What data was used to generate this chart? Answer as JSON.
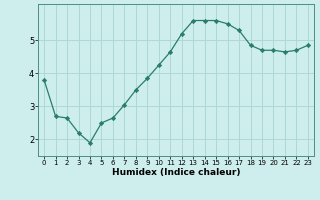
{
  "x": [
    0,
    1,
    2,
    3,
    4,
    5,
    6,
    7,
    8,
    9,
    10,
    11,
    12,
    13,
    14,
    15,
    16,
    17,
    18,
    19,
    20,
    21,
    22,
    23
  ],
  "y": [
    3.8,
    2.7,
    2.65,
    2.2,
    1.9,
    2.5,
    2.65,
    3.05,
    3.5,
    3.85,
    4.25,
    4.65,
    5.2,
    5.6,
    5.6,
    5.6,
    5.5,
    5.3,
    4.85,
    4.7,
    4.7,
    4.65,
    4.7,
    4.85
  ],
  "title": "",
  "xlabel": "Humidex (Indice chaleur)",
  "ylabel": "",
  "bg_color": "#cdeeed",
  "line_color": "#2a7d6e",
  "marker_color": "#2a7d6e",
  "grid_color": "#aed8d4",
  "axis_bg": "#cdeeed",
  "ylim_min": 1.5,
  "ylim_max": 6.1,
  "yticks": [
    2,
    3,
    4,
    5
  ],
  "xtick_labels": [
    "0",
    "1",
    "2",
    "3",
    "4",
    "5",
    "6",
    "7",
    "8",
    "9",
    "10",
    "11",
    "12",
    "13",
    "14",
    "15",
    "16",
    "17",
    "18",
    "19",
    "20",
    "21",
    "22",
    "23"
  ],
  "xtick_fontsize": 5,
  "ytick_fontsize": 6,
  "xlabel_fontsize": 6.5
}
